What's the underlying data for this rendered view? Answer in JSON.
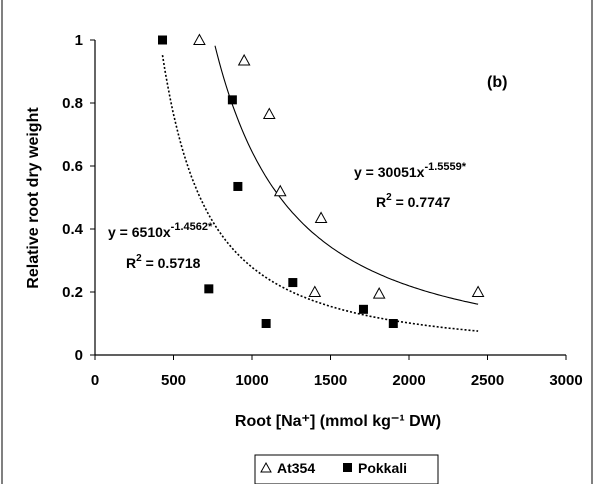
{
  "chart_data": {
    "type": "scatter",
    "panel_label": "(b)",
    "xlabel": "Root [Na⁺] (mmol kg⁻¹ DW)",
    "ylabel": "Relative root dry weight",
    "xlim": [
      0,
      3000
    ],
    "ylim": [
      0,
      1
    ],
    "xticks": [
      0,
      500,
      1000,
      1500,
      2000,
      2500,
      3000
    ],
    "yticks": [
      0,
      0.2,
      0.4,
      0.6,
      0.8,
      1
    ],
    "ytick_labels": [
      "0",
      "0.2",
      "0.4",
      "0.6",
      "0.8",
      "1"
    ],
    "grid": false,
    "legend_position": "bottom",
    "series": [
      {
        "name": "At354",
        "marker": "open-triangle",
        "color": "#000000",
        "points": [
          [
            665,
            1.0
          ],
          [
            950,
            0.935
          ],
          [
            1110,
            0.765
          ],
          [
            1180,
            0.52
          ],
          [
            1440,
            0.435
          ],
          [
            1400,
            0.2
          ],
          [
            1810,
            0.195
          ],
          [
            2440,
            0.2
          ]
        ],
        "trendline": {
          "style": "solid",
          "equation": "y = 30051x",
          "exponent": "-1.5559*",
          "r2_prefix": "R",
          "r2_value": " = 0.7747",
          "a": 30051,
          "b": -1.5559,
          "x_range": [
            750,
            2440
          ]
        }
      },
      {
        "name": "Pokkali",
        "marker": "filled-square",
        "color": "#000000",
        "points": [
          [
            430,
            1.0
          ],
          [
            875,
            0.81
          ],
          [
            910,
            0.535
          ],
          [
            725,
            0.21
          ],
          [
            1090,
            0.1
          ],
          [
            1260,
            0.23
          ],
          [
            1710,
            0.145
          ],
          [
            1900,
            0.1
          ]
        ],
        "trendline": {
          "style": "dotted",
          "equation": "y = 6510x",
          "exponent": "-1.4562*",
          "r2_prefix": "R",
          "r2_value": " = 0.5718",
          "a": 6510,
          "b": -1.4562,
          "x_range": [
            430,
            2440
          ]
        }
      }
    ]
  }
}
